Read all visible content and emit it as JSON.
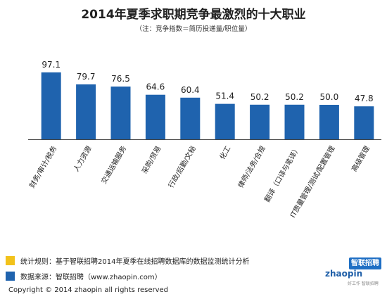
{
  "title": "2014年夏季求职期竞争最激烈的十大职业",
  "subtitle": "（注：竞争指数＝简历投递量/职位量）",
  "chart_data": {
    "type": "bar",
    "categories": [
      "财务/审计/税务",
      "人力资源",
      "交通运输服务",
      "采购/贸易",
      "行政/后勤/文秘",
      "化工",
      "律师/法务/合规",
      "翻译（口译与笔译）",
      "IT质量管理/测试/配置管理",
      "高级管理"
    ],
    "values": [
      97.1,
      79.7,
      76.5,
      64.6,
      60.4,
      51.4,
      50.2,
      50.2,
      50.0,
      47.8
    ],
    "data_labels": [
      "97.1",
      "79.7",
      "76.5",
      "64.6",
      "60.4",
      "51.4",
      "50.2",
      "50.2",
      "50.0",
      "47.8"
    ],
    "ylim": [
      0,
      100
    ],
    "bar_color": "#1f63ae",
    "grid": false,
    "legend": "none"
  },
  "footer": {
    "rule_label": "统计规则：基于智联招聘2014年夏季在线招聘数据库的数据监测统计分析",
    "rule_color": "#f2c21b",
    "source_label": "数据来源：智联招聘（www.zhaopin.com）",
    "source_color": "#1f63ae",
    "copyright": "Copyright  ©  2014 zhaopin all rights reserved"
  },
  "brand": {
    "name_cn": "智联招聘",
    "word": "zhaopin",
    "slogan": "好工作 智联招聘"
  }
}
